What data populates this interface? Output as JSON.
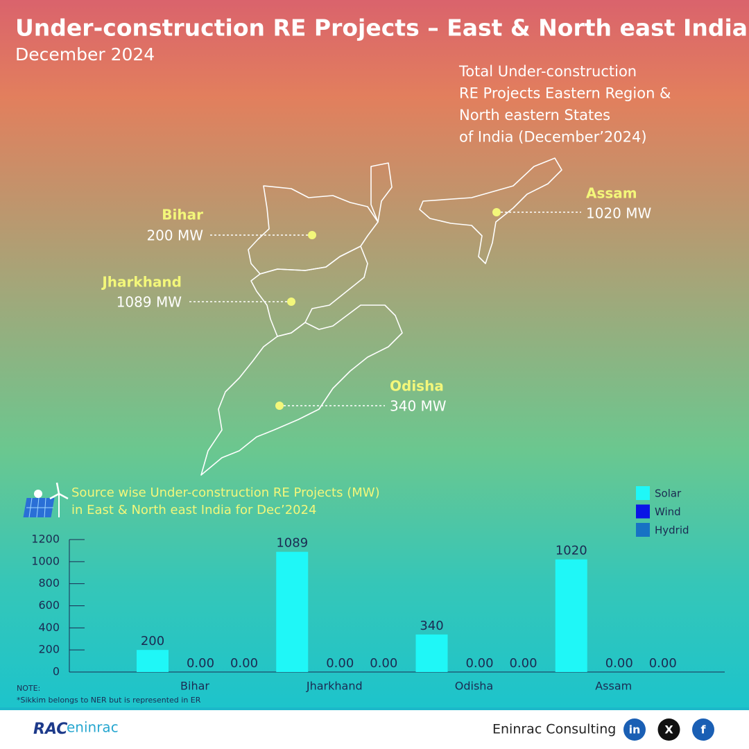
{
  "header": {
    "title": "Under-construction RE Projects – East & North east India",
    "subtitle": "December 2024"
  },
  "map": {
    "description": [
      "Total Under-construction",
      "RE Projects Eastern Region &",
      "North eastern States",
      "of India (December’2024)"
    ],
    "states": [
      {
        "name": "Bihar",
        "label": "200 MW"
      },
      {
        "name": "Jharkhand",
        "label": "1089 MW"
      },
      {
        "name": "Odisha",
        "label": "340 MW"
      },
      {
        "name": "Assam",
        "label": "1020 MW"
      }
    ]
  },
  "chart_data": {
    "type": "bar",
    "title": [
      "Source wise Under-construction RE Projects (MW)",
      "in East & North east India for Dec’2024"
    ],
    "categories": [
      "Bihar",
      "Jharkhand",
      "Odisha",
      "Assam"
    ],
    "series": [
      {
        "name": "Solar",
        "color": "#1ff7f7",
        "values": [
          200,
          1089,
          340,
          1020
        ]
      },
      {
        "name": "Wind",
        "color": "#0a14e6",
        "values": [
          0,
          0,
          0,
          0
        ],
        "value_labels": [
          "0.00",
          "0.00",
          "0.00",
          "0.00"
        ]
      },
      {
        "name": "Hydrid",
        "color": "#1772c4",
        "values": [
          0,
          0,
          0,
          0
        ],
        "value_labels": [
          "0.00",
          "0.00",
          "0.00",
          "0.00"
        ]
      }
    ],
    "ylim": [
      0,
      1200
    ],
    "yticks": [
      0,
      200,
      400,
      600,
      800,
      1000,
      1200
    ],
    "legend": "top-right"
  },
  "note": [
    "NOTE:",
    "*Sikkim belongs to NER but is represented in ER"
  ],
  "footer": {
    "logo": [
      "RAC",
      "eninrac"
    ],
    "company": "Eninrac Consulting",
    "social": [
      "in",
      "X",
      "f"
    ]
  }
}
